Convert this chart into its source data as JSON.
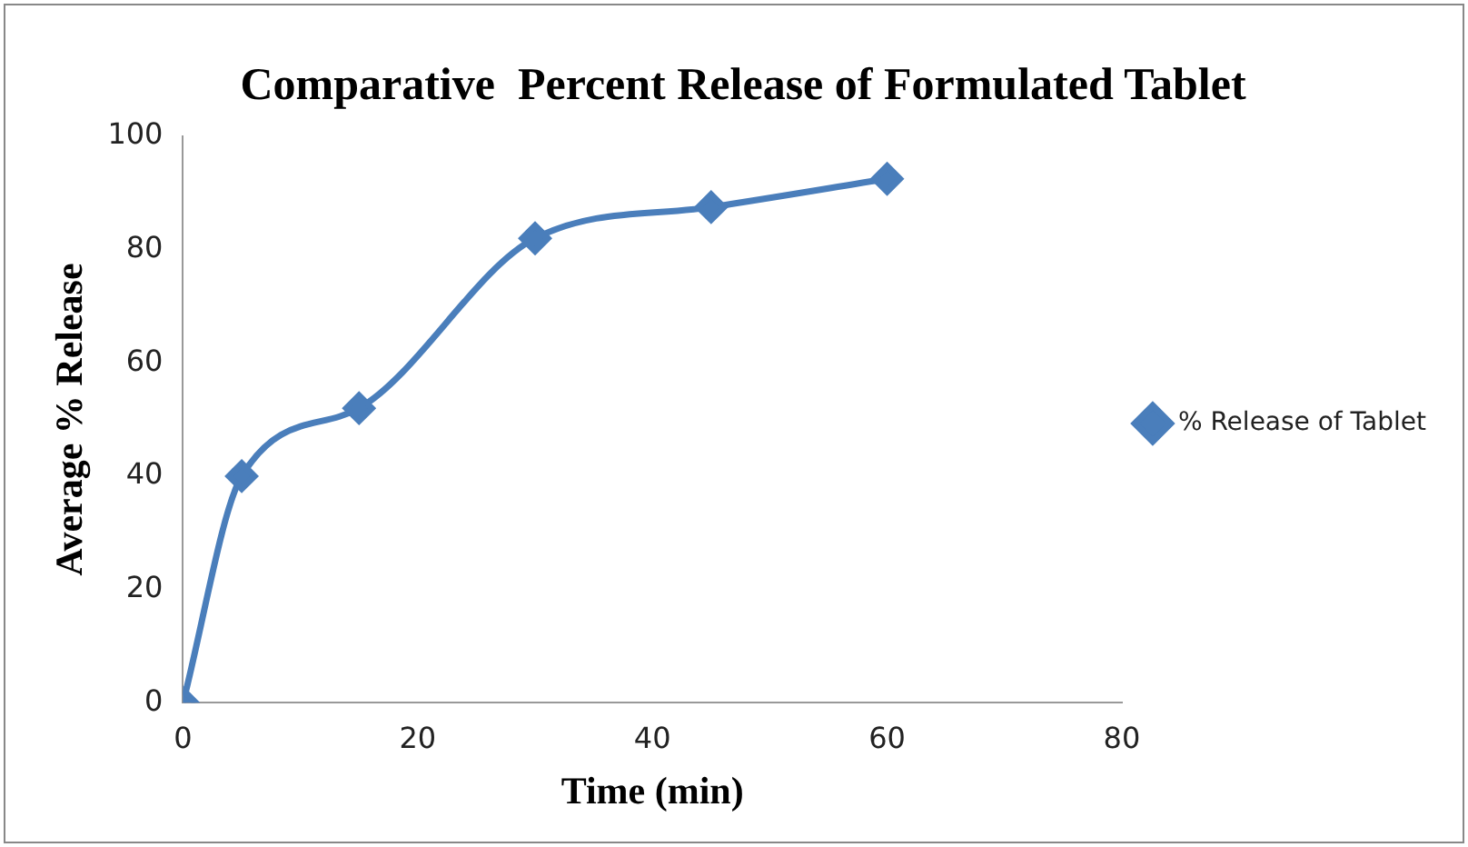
{
  "chart_data": {
    "type": "line",
    "title": "Comparative  Percent Release of Formulated Tablet",
    "xlabel": "Time (min)",
    "ylabel": "Average % Release",
    "x": [
      0,
      5,
      15,
      30,
      45,
      60
    ],
    "series": [
      {
        "name": "% Release of Tablet",
        "color": "#4a7ebb",
        "values": [
          0,
          40,
          52,
          82,
          87.5,
          92.5
        ]
      }
    ],
    "xlim": [
      0,
      80
    ],
    "xticks": [
      0,
      20,
      40,
      60,
      80
    ],
    "ylim": [
      0,
      100
    ],
    "yticks": [
      0,
      20,
      40,
      60,
      80,
      100
    ],
    "grid": false,
    "legend": "right",
    "marker": "diamond",
    "line_style": "solid"
  }
}
